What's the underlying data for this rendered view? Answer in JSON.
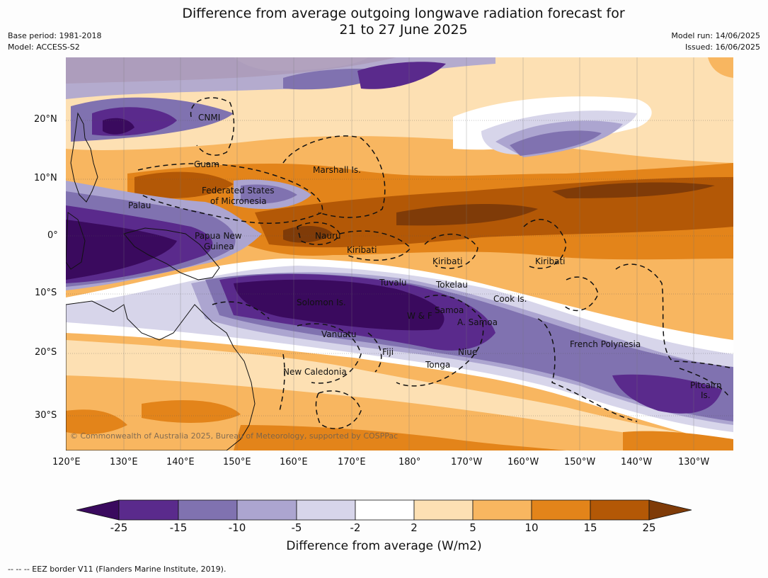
{
  "title_line1": "Difference from average outgoing longwave radiation forecast for",
  "title_line2": "21 to 27 June 2025",
  "base_period": "Base period: 1981-2018",
  "model": "Model: ACCESS-S2",
  "model_run": "Model run: 14/06/2025",
  "issued": "Issued: 16/06/2025",
  "copyright": "© Commonwealth of Australia 2025, Bureau of Meteorology, supported by COSPPac",
  "lat_ticks": [
    "20°N",
    "10°N",
    "0°",
    "10°S",
    "20°S",
    "30°S"
  ],
  "lon_ticks": [
    "120°E",
    "130°E",
    "140°E",
    "150°E",
    "160°E",
    "170°E",
    "180°",
    "170°W",
    "160°W",
    "150°W",
    "140°W",
    "130°W"
  ],
  "colorbar": {
    "label": "Difference from average (W/m2)",
    "ticks": [
      "-25",
      "-15",
      "-10",
      "-5",
      "-2",
      "2",
      "5",
      "10",
      "15",
      "25"
    ],
    "colors": {
      "extend_low": "#3a0a5e",
      "c1": "#5a2a8c",
      "c2": "#8072b0",
      "c3": "#aca5d0",
      "c4": "#d7d5ea",
      "c5": "#ffffff",
      "c6": "#fde0b3",
      "c7": "#f8b660",
      "c8": "#e3841a",
      "c9": "#b35806",
      "extend_high": "#7f3b08"
    }
  },
  "place_labels": [
    "CNMI",
    "Guam",
    "Marshall Is.",
    "Federated States",
    "of Micronesia",
    "Palau",
    "Papua New",
    "Guinea",
    "Nauru",
    "Kiribati",
    "Kiribati",
    "Kiribati",
    "Tuvalu",
    "Tokelau",
    "Cook Is.",
    "Solomon Is.",
    "Samoa",
    "W & F",
    "A. Samoa",
    "Vanuatu",
    "Fiji",
    "Niue",
    "Tonga",
    "French Polynesia",
    "New Caledonia",
    "Pitcairn",
    "Is."
  ],
  "footnote": "--  --  -- EEZ border V11 (Flanders Marine Institute, 2019)."
}
